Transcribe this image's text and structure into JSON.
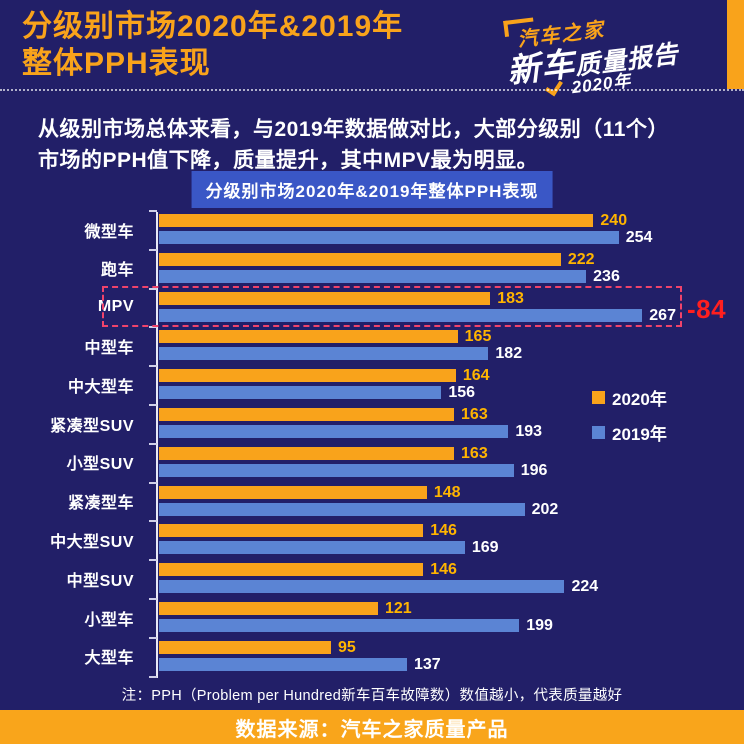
{
  "header": {
    "title_line1": "分级别市场2020年&2019年",
    "title_line2": "整体PPH表现",
    "logo": {
      "brand": "汽车之家",
      "product_big": "新车",
      "product_small": "质量报告",
      "year": "2020年"
    }
  },
  "intro": {
    "line1": "从级别市场总体来看，与2019年数据做对比，大部分级别（11个）",
    "line2": "市场的PPH值下降，质量提升，其中MPV最为明显。"
  },
  "chart_title": "分级别市场2020年&2019年整体PPH表现",
  "chart_data": {
    "type": "bar",
    "orientation": "horizontal",
    "categories": [
      "微型车",
      "跑车",
      "MPV",
      "中型车",
      "中大型车",
      "紧凑型SUV",
      "小型SUV",
      "紧凑型车",
      "中大型SUV",
      "中型SUV",
      "小型车",
      "大型车"
    ],
    "series": [
      {
        "name": "2020年",
        "color": "#F9A31B",
        "values": [
          240,
          222,
          183,
          165,
          164,
          163,
          163,
          148,
          146,
          146,
          121,
          95
        ]
      },
      {
        "name": "2019年",
        "color": "#5B84D4",
        "values": [
          254,
          236,
          267,
          182,
          156,
          193,
          196,
          202,
          169,
          224,
          199,
          137
        ]
      }
    ],
    "xlim": [
      0,
      267
    ],
    "grid": false,
    "legend_position": "right-middle",
    "highlight": {
      "category": "MPV",
      "category_index": 2,
      "label": "-84"
    }
  },
  "note": "注：PPH（Problem per Hundred新车百车故障数）数值越小，代表质量越好",
  "footer": "数据来源：汽车之家质量产品",
  "colors": {
    "background": "#221f68",
    "accent_orange": "#F9A31B",
    "bar_blue": "#5B84D4",
    "value_orange": "#FFB400",
    "badge_blue": "#3A57C6",
    "highlight_red": "#FF1F1F",
    "highlight_border": "#F0436B"
  }
}
